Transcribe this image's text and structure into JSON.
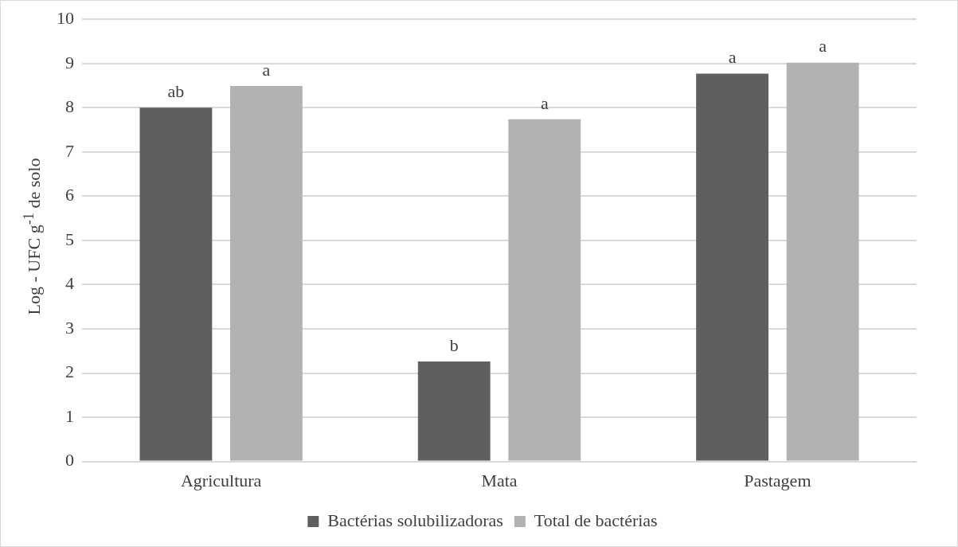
{
  "chart_data": {
    "type": "bar",
    "ylabel": "Log - UFC g$^{-1}$ de solo",
    "categories": [
      "Agricultura",
      "Mata",
      "Pastagem"
    ],
    "series": [
      {
        "name": "Bactérias solubilizadoras",
        "color": "#5f5f5f",
        "values": [
          8.0,
          2.26,
          8.77
        ],
        "value_labels": [
          "ab",
          "b",
          "a"
        ]
      },
      {
        "name": "Total de bactérias",
        "color": "#b2b2b2",
        "values": [
          8.49,
          7.74,
          9.02
        ],
        "value_labels": [
          "a",
          "a",
          "a"
        ]
      }
    ],
    "ylim": [
      0,
      10
    ],
    "yticks": [
      0,
      1,
      2,
      3,
      4,
      5,
      6,
      7,
      8,
      9,
      10
    ],
    "grid": "y",
    "legend": "bottom"
  }
}
